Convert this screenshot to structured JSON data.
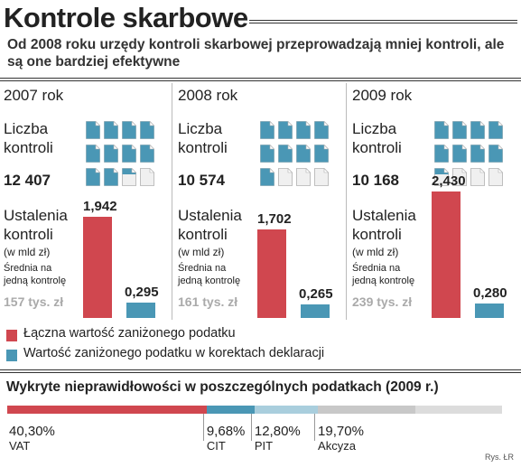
{
  "title": "Kontrole skarbowe",
  "subtitle": "Od 2008 roku urzędy kontroli skarbowej przeprowadzają mniej kontroli, ale są one bardziej efektywne",
  "labels": {
    "count_label_1": "Liczba",
    "count_label_2": "kontroli",
    "findings_label_1": "Ustalenia",
    "findings_label_2": "kontroli",
    "findings_unit": "(w mld zł)",
    "avg_label_1": "Średnia na",
    "avg_label_2": "jedną kontrolę"
  },
  "colors": {
    "red": "#d0474f",
    "blue": "#4a97b5",
    "doc_blue": "#4a97b5",
    "doc_empty": "#f0f0f0",
    "grey_bar": "#c8c8c8"
  },
  "years": [
    {
      "year": "2007 rok",
      "count": "12 407",
      "filled_docs": 10.5,
      "total": "1,942",
      "corrections": "0,295",
      "avg": "157 tys. zł"
    },
    {
      "year": "2008 rok",
      "count": "10 574",
      "filled_docs": 9,
      "total": "1,702",
      "corrections": "0,265",
      "avg": "161 tys. zł"
    },
    {
      "year": "2009 rok",
      "count": "10 168",
      "filled_docs": 8.5,
      "total": "2,430",
      "corrections": "0,280",
      "avg": "239 tys. zł"
    }
  ],
  "legend": {
    "total": "Łączna wartość zaniżonego podatku",
    "corrections": "Wartość zaniżonego podatku w korektach deklaracji"
  },
  "bottom": {
    "title": "Wykryte nieprawidłowości w poszczególnych podatkach (2009 r.)",
    "segments": [
      {
        "name": "VAT",
        "label": "40,30%",
        "value": 40.3,
        "color": "#d0474f"
      },
      {
        "name": "CIT",
        "label": "9,68%",
        "value": 9.68,
        "color": "#4a97b5"
      },
      {
        "name": "PIT",
        "label": "12,80%",
        "value": 12.8,
        "color": "#a9cedd"
      },
      {
        "name": "Akcyza",
        "label": "19,70%",
        "value": 19.7,
        "color": "#c8c8c8"
      }
    ]
  },
  "credit": "Rys. ŁR",
  "chart_data": {
    "type": "bar",
    "title": "Kontrole skarbowe",
    "categories": [
      "2007 rok",
      "2008 rok",
      "2009 rok"
    ],
    "ylabel": "Ustalenia kontroli (w mld zł)",
    "series": [
      {
        "name": "Łączna wartość zaniżonego podatku",
        "values": [
          1.942,
          1.702,
          2.43
        ]
      },
      {
        "name": "Wartość zaniżonego podatku w korektach deklaracji",
        "values": [
          0.295,
          0.265,
          0.28
        ]
      }
    ],
    "counts": [
      12407,
      10574,
      10168
    ],
    "averages_tys_zl": [
      157,
      161,
      239
    ],
    "breakdown_2009": {
      "type": "bar",
      "categories": [
        "VAT",
        "CIT",
        "PIT",
        "Akcyza"
      ],
      "values": [
        40.3,
        9.68,
        12.8,
        19.7
      ]
    }
  }
}
